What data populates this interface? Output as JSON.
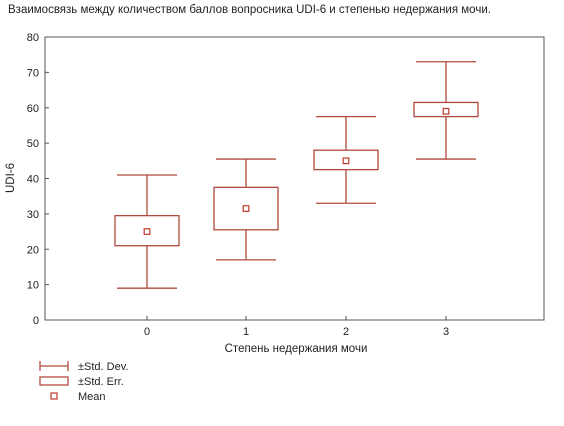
{
  "chart_data": {
    "type": "box",
    "title": "Взаимосвязь между количеством баллов вопросника UDI-6 и степенью недержания мочи.",
    "xlabel": "Степень недержания мочи",
    "ylabel": "UDI-6",
    "categories": [
      "0",
      "1",
      "2",
      "3"
    ],
    "ylim": [
      0,
      80
    ],
    "yticks": [
      0,
      10,
      20,
      30,
      40,
      50,
      60,
      70,
      80
    ],
    "series": [
      {
        "category": "0",
        "mean": 25.0,
        "se_low": 21.0,
        "se_high": 29.5,
        "sd_low": 9.0,
        "sd_high": 41.0
      },
      {
        "category": "1",
        "mean": 31.5,
        "se_low": 25.5,
        "se_high": 37.5,
        "sd_low": 17.0,
        "sd_high": 45.5
      },
      {
        "category": "2",
        "mean": 45.0,
        "se_low": 42.5,
        "se_high": 48.0,
        "sd_low": 33.0,
        "sd_high": 57.5
      },
      {
        "category": "3",
        "mean": 59.0,
        "se_low": 57.5,
        "se_high": 61.5,
        "sd_low": 45.5,
        "sd_high": 73.0
      }
    ],
    "legend": {
      "position": "bottom-left",
      "items": [
        {
          "symbol": "whisker",
          "label": "±Std. Dev."
        },
        {
          "symbol": "box",
          "label": "±Std. Err."
        },
        {
          "symbol": "point",
          "label": "Mean"
        }
      ]
    },
    "colors": {
      "box": "#b04a3c",
      "mean": "#c0392b",
      "axis": "#555555",
      "tick": "#888888"
    },
    "grid": false
  }
}
